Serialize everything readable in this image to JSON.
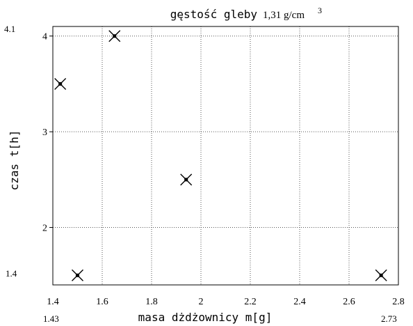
{
  "chart_data": {
    "type": "scatter",
    "title": "gęstość gleby",
    "subtitle_value": "1,31 g/cm",
    "subtitle_exp": "3",
    "xlabel": "masa dżdżownicy  m[g]",
    "ylabel": "czas  t[h]",
    "xlim": [
      1.4,
      2.8
    ],
    "ylim": [
      1.4,
      4.1
    ],
    "x_ticks": [
      1.4,
      1.6,
      1.8,
      2.0,
      2.2,
      2.4,
      2.6,
      2.8
    ],
    "x_tick_labels": [
      "1.4",
      "1.6",
      "1.8",
      "2",
      "2.2",
      "2.4",
      "2.6",
      "2.8"
    ],
    "y_ticks": [
      2,
      3,
      4
    ],
    "y_tick_labels": [
      "2",
      "3",
      "4"
    ],
    "x_extent_labels": [
      "1.43",
      "2.73"
    ],
    "y_extent_labels": [
      "1.4",
      "4.1"
    ],
    "grid": true,
    "grid_style": "dotted",
    "marker": "x-with-dot",
    "points": [
      {
        "x": 1.43,
        "y": 3.5
      },
      {
        "x": 1.5,
        "y": 1.5
      },
      {
        "x": 1.65,
        "y": 4.0
      },
      {
        "x": 1.94,
        "y": 2.5
      },
      {
        "x": 2.73,
        "y": 1.5
      }
    ]
  }
}
